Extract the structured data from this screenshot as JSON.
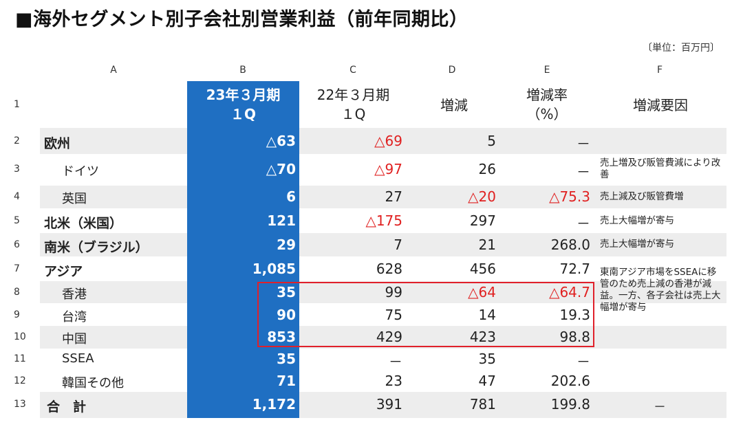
{
  "title": "■海外セグメント別子会社別営業利益（前年同期比）",
  "unit": "〔単位：百万円〕",
  "column_letters": [
    "A",
    "B",
    "C",
    "D",
    "E",
    "F"
  ],
  "headers": {
    "b_line1": "23年３月期",
    "b_line2": "１Q",
    "c_line1": "22年３月期",
    "c_line2": "１Q",
    "d": "増減",
    "e_line1": "増減率",
    "e_line2": "（%）",
    "f": "増減要因"
  },
  "rows": [
    {
      "num": "2",
      "name": "欧州",
      "b": "△63",
      "c": "△69",
      "d": "5",
      "e": "－",
      "f": ""
    },
    {
      "num": "3",
      "name": "ドイツ",
      "b": "△70",
      "c": "△97",
      "d": "26",
      "e": "－",
      "f": "売上増及び販管費減により改善"
    },
    {
      "num": "4",
      "name": "英国",
      "b": "6",
      "c": "27",
      "d": "△20",
      "e": "△75.3",
      "f": "売上減及び販管費増"
    },
    {
      "num": "5",
      "name": "北米（米国）",
      "b": "121",
      "c": "△175",
      "d": "297",
      "e": "－",
      "f": "売上大幅増が寄与"
    },
    {
      "num": "6",
      "name": "南米（ブラジル）",
      "b": "29",
      "c": "7",
      "d": "21",
      "e": "268.0",
      "f": "売上大幅増が寄与"
    },
    {
      "num": "7",
      "name": "アジア",
      "b": "1,085",
      "c": "628",
      "d": "456",
      "e": "72.7",
      "f": ""
    },
    {
      "num": "8",
      "name": "香港",
      "b": "35",
      "c": "99",
      "d": "△64",
      "e": "△64.7",
      "f": ""
    },
    {
      "num": "9",
      "name": "台湾",
      "b": "90",
      "c": "75",
      "d": "14",
      "e": "19.3",
      "f": ""
    },
    {
      "num": "10",
      "name": "中国",
      "b": "853",
      "c": "429",
      "d": "423",
      "e": "98.8",
      "f": ""
    },
    {
      "num": "11",
      "name": "SSEA",
      "b": "35",
      "c": "－",
      "d": "35",
      "e": "－",
      "f": ""
    },
    {
      "num": "12",
      "name": "韓国その他",
      "b": "71",
      "c": "23",
      "d": "47",
      "e": "202.6",
      "f": ""
    },
    {
      "num": "13",
      "name": "合　計",
      "b": "1,172",
      "c": "391",
      "d": "781",
      "e": "199.8",
      "f": "－"
    }
  ],
  "asia_note": "東南アジア市場をSSEAに移管のため売上減の香港が減益。一方、各子会社は売上大幅増が寄与",
  "row1_num": "1",
  "colors": {
    "blue": "#1f6fc2",
    "red": "#e02020",
    "stripe": "#ededed",
    "highlight_border": "#e0202a"
  }
}
